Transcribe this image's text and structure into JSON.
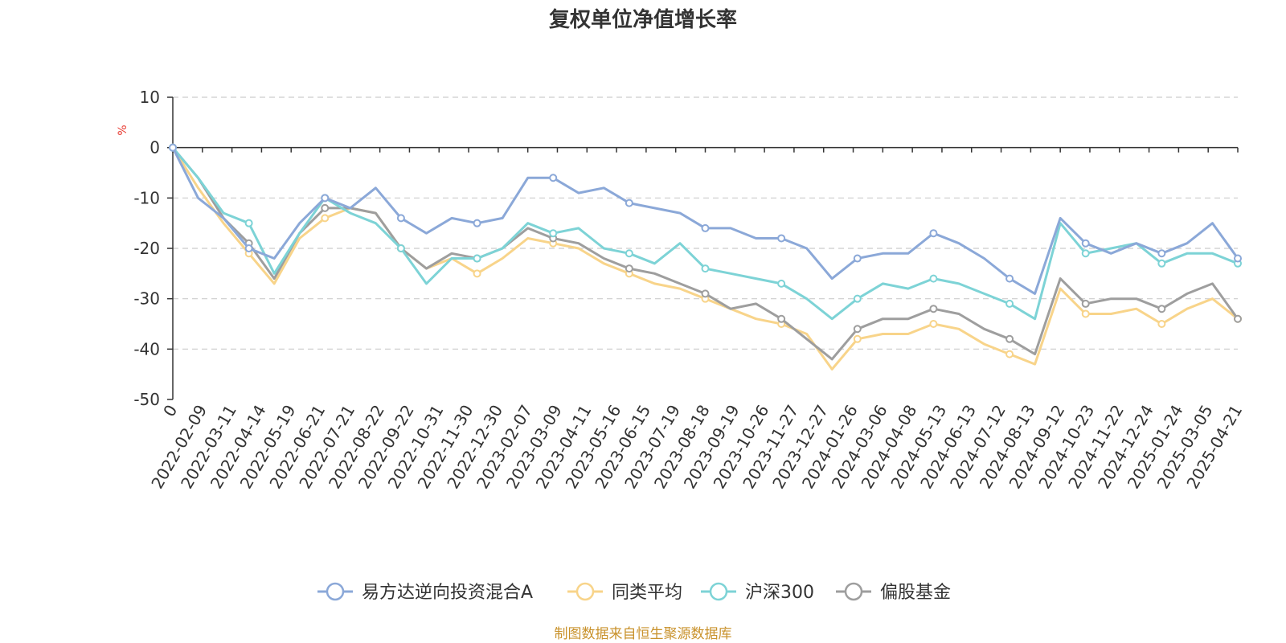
{
  "chart_data": {
    "type": "line",
    "title": "复权单位净值增长率",
    "unit_label": "%",
    "source_note": "制图数据来自恒生聚源数据库",
    "ylim": [
      -50,
      10
    ],
    "yticks": [
      10,
      0,
      -10,
      -20,
      -30,
      -40,
      -50
    ],
    "grid": "horizontal dashed",
    "legend_position": "bottom-center",
    "x_tick_labels": [
      "0",
      "2022-02-09",
      "2022-03-11",
      "2022-04-14",
      "2022-05-19",
      "2022-06-21",
      "2022-07-21",
      "2022-08-22",
      "2022-09-22",
      "2022-10-31",
      "2022-11-30",
      "2022-12-30",
      "2023-02-07",
      "2023-03-09",
      "2023-04-11",
      "2023-05-16",
      "2023-06-15",
      "2023-07-19",
      "2023-08-18",
      "2023-09-19",
      "2023-10-26",
      "2023-11-27",
      "2023-12-27",
      "2024-01-26",
      "2024-03-06",
      "2024-04-08",
      "2024-05-13",
      "2024-06-13",
      "2024-07-12",
      "2024-08-13",
      "2024-09-12",
      "2024-10-23",
      "2024-11-22",
      "2024-12-24",
      "2025-01-24",
      "2025-03-05",
      "2025-04-21"
    ],
    "series": [
      {
        "name": "易方达逆向投资混合A",
        "color": "#8ba8d8",
        "values": [
          0,
          -10,
          -14,
          -20,
          -22,
          -15,
          -10,
          -12,
          -8,
          -14,
          -17,
          -14,
          -15,
          -14,
          -6,
          -6,
          -9,
          -8,
          -11,
          -12,
          -13,
          -16,
          -16,
          -18,
          -18,
          -20,
          -26,
          -22,
          -21,
          -21,
          -17,
          -19,
          -22,
          -26,
          -29,
          -14,
          -19,
          -21,
          -19,
          -21,
          -19,
          -15,
          -22
        ]
      },
      {
        "name": "同类平均",
        "color": "#f8d48a",
        "values": [
          0,
          -8,
          -15,
          -21,
          -27,
          -18,
          -14,
          -12,
          -13,
          -20,
          -24,
          -22,
          -25,
          -22,
          -18,
          -19,
          -20,
          -23,
          -25,
          -27,
          -28,
          -30,
          -32,
          -34,
          -35,
          -37,
          -44,
          -38,
          -37,
          -37,
          -35,
          -36,
          -39,
          -41,
          -43,
          -28,
          -33,
          -33,
          -32,
          -35,
          -32,
          -30,
          -34
        ]
      },
      {
        "name": "沪深300",
        "color": "#7dd3d6",
        "values": [
          0,
          -6,
          -13,
          -15,
          -25,
          -17,
          -10,
          -13,
          -15,
          -20,
          -27,
          -22,
          -22,
          -20,
          -15,
          -17,
          -16,
          -20,
          -21,
          -23,
          -19,
          -24,
          -25,
          -26,
          -27,
          -30,
          -34,
          -30,
          -27,
          -28,
          -26,
          -27,
          -29,
          -31,
          -34,
          -15,
          -21,
          -20,
          -19,
          -23,
          -21,
          -21,
          -23
        ]
      },
      {
        "name": "偏股基金",
        "color": "#9e9e9e",
        "values": [
          0,
          -6,
          -14,
          -19,
          -26,
          -17,
          -12,
          -12,
          -13,
          -20,
          -24,
          -21,
          -22,
          -20,
          -16,
          -18,
          -19,
          -22,
          -24,
          -25,
          -27,
          -29,
          -32,
          -31,
          -34,
          -38,
          -42,
          -36,
          -34,
          -34,
          -32,
          -33,
          -36,
          -38,
          -41,
          -26,
          -31,
          -30,
          -30,
          -32,
          -29,
          -27,
          -34
        ]
      }
    ]
  }
}
